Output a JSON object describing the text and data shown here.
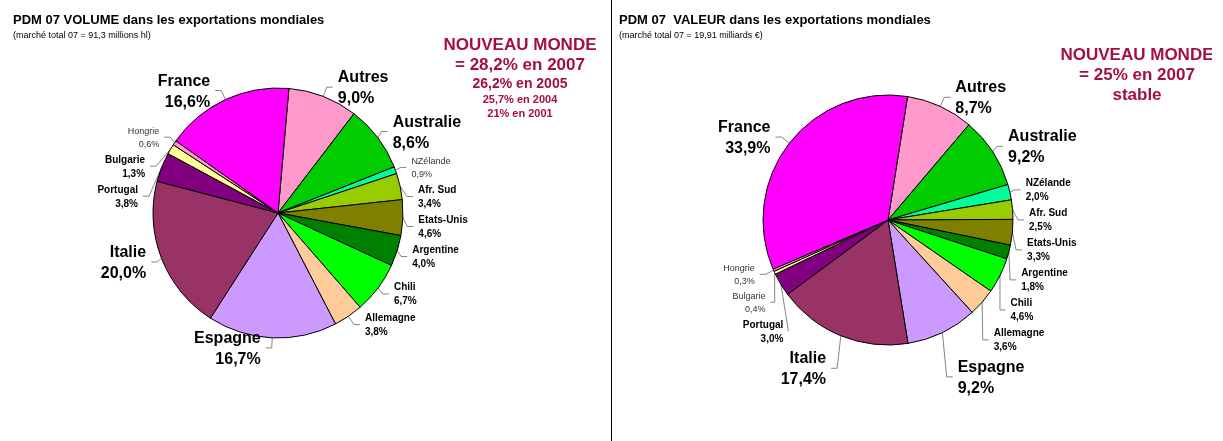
{
  "chart_data": [
    {
      "type": "pie",
      "title": "PDM 07 VOLUME dans les exportations mondiales",
      "subtitle": "(marché total 07 = 91,3 millions hl)",
      "categories": [
        "Autres",
        "Australie",
        "NZélande",
        "Afr. Sud",
        "Etats-Unis",
        "Argentine",
        "Chili",
        "Allemagne",
        "Espagne",
        "Italie",
        "Portugal",
        "Bulgarie",
        "Hongrie",
        "France"
      ],
      "values": [
        9.0,
        8.6,
        0.9,
        3.4,
        4.6,
        4.0,
        6.7,
        3.8,
        16.7,
        20.0,
        3.8,
        1.3,
        0.6,
        16.6
      ],
      "value_labels": [
        "9,0%",
        "8,6%",
        "0,9%",
        "3,4%",
        "4,6%",
        "4,0%",
        "6,7%",
        "3,8%",
        "16,7%",
        "20,0%",
        "3,8%",
        "1,3%",
        "0,6%",
        "16,6%"
      ],
      "colors": [
        "#ff99cc",
        "#00cc00",
        "#00ff99",
        "#99cc00",
        "#808000",
        "#008000",
        "#00ff00",
        "#ffcc99",
        "#cc99ff",
        "#993366",
        "#800080",
        "#ffff99",
        "#ff99cc",
        "#ff00ff"
      ],
      "annotations": [
        "NOUVEAU MONDE",
        "= 28,2% en 2007",
        "26,2% en 2005",
        "25,7% en 2004",
        "21% en 2001"
      ],
      "legend": false
    },
    {
      "type": "pie",
      "title": "PDM 07  VALEUR dans les exportations mondiales",
      "subtitle": "(marché total 07 = 19,91 milliards €)",
      "categories": [
        "Autres",
        "Australie",
        "NZélande",
        "Afr. Sud",
        "Etats-Unis",
        "Argentine",
        "Chili",
        "Allemagne",
        "Espagne",
        "Italie",
        "Portugal",
        "Bulgarie",
        "Hongrie",
        "France"
      ],
      "values": [
        8.7,
        9.2,
        2.0,
        2.5,
        3.3,
        1.8,
        4.6,
        3.6,
        9.2,
        17.4,
        3.0,
        0.4,
        0.3,
        33.9
      ],
      "value_labels": [
        "8,7%",
        "9,2%",
        "2,0%",
        "2,5%",
        "3,3%",
        "1,8%",
        "4,6%",
        "3,6%",
        "9,2%",
        "17,4%",
        "3,0%",
        "0,4%",
        "0,3%",
        "33,9%"
      ],
      "colors": [
        "#ff99cc",
        "#00cc00",
        "#00ff99",
        "#99cc00",
        "#808000",
        "#008000",
        "#00ff00",
        "#ffcc99",
        "#cc99ff",
        "#993366",
        "#800080",
        "#ffff99",
        "#ff99cc",
        "#ff00ff"
      ],
      "annotations": [
        "NOUVEAU MONDE",
        "= 25% en 2007",
        "stable"
      ],
      "legend": false
    }
  ]
}
